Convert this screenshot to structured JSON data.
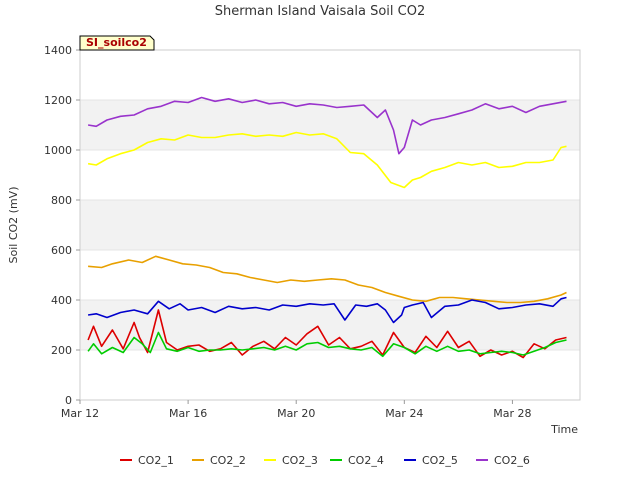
{
  "chart_data": {
    "type": "line",
    "title": "Sherman Island Vaisala Soil CO2",
    "site_label": "SI_soilco2",
    "xlabel": "Time",
    "ylabel": "Soil CO2 (mV)",
    "xlim_days": [
      0,
      18.5
    ],
    "x_ticks": [
      {
        "label": "Mar 12",
        "day": 0
      },
      {
        "label": "Mar 16",
        "day": 4
      },
      {
        "label": "Mar 20",
        "day": 8
      },
      {
        "label": "Mar 24",
        "day": 12
      },
      {
        "label": "Mar 28",
        "day": 16
      }
    ],
    "y_ticks": [
      0,
      200,
      400,
      600,
      800,
      1000,
      1200,
      1400
    ],
    "ylim": [
      0,
      1400
    ],
    "grid": true,
    "legend_position": "bottom",
    "series": [
      {
        "name": "CO2_1",
        "color": "#dd0000",
        "x": [
          0.3,
          0.5,
          0.8,
          1.2,
          1.6,
          2.0,
          2.2,
          2.5,
          2.9,
          3.2,
          3.6,
          4.0,
          4.4,
          4.8,
          5.2,
          5.6,
          6.0,
          6.4,
          6.8,
          7.2,
          7.6,
          8.0,
          8.4,
          8.8,
          9.2,
          9.6,
          10.0,
          10.4,
          10.8,
          11.2,
          11.6,
          12.0,
          12.4,
          12.8,
          13.2,
          13.6,
          14.0,
          14.4,
          14.8,
          15.2,
          15.6,
          16.0,
          16.4,
          16.8,
          17.2,
          17.6,
          18.0
        ],
        "y": [
          240,
          295,
          215,
          280,
          205,
          310,
          250,
          190,
          360,
          230,
          200,
          215,
          220,
          195,
          205,
          230,
          180,
          215,
          235,
          205,
          250,
          220,
          265,
          295,
          220,
          250,
          205,
          215,
          235,
          180,
          270,
          210,
          190,
          255,
          210,
          275,
          210,
          235,
          175,
          200,
          180,
          195,
          170,
          225,
          205,
          240,
          250
        ]
      },
      {
        "name": "CO2_2",
        "color": "#e8a000",
        "x": [
          0.3,
          0.8,
          1.2,
          1.8,
          2.3,
          2.8,
          3.3,
          3.8,
          4.3,
          4.8,
          5.3,
          5.8,
          6.3,
          6.8,
          7.3,
          7.8,
          8.3,
          8.8,
          9.3,
          9.8,
          10.3,
          10.8,
          11.3,
          11.8,
          12.3,
          12.8,
          13.3,
          13.8,
          14.3,
          14.8,
          15.3,
          15.8,
          16.3,
          16.8,
          17.3,
          17.8,
          18.0
        ],
        "y": [
          535,
          530,
          545,
          560,
          550,
          575,
          560,
          545,
          540,
          530,
          510,
          505,
          490,
          480,
          470,
          480,
          475,
          480,
          485,
          480,
          460,
          450,
          430,
          415,
          400,
          395,
          410,
          410,
          405,
          400,
          395,
          390,
          390,
          395,
          405,
          420,
          430
        ]
      },
      {
        "name": "CO2_3",
        "color": "#ffff00",
        "x": [
          0.3,
          0.6,
          1.0,
          1.5,
          2.0,
          2.5,
          3.0,
          3.5,
          4.0,
          4.5,
          5.0,
          5.5,
          6.0,
          6.5,
          7.0,
          7.5,
          8.0,
          8.5,
          9.0,
          9.5,
          10.0,
          10.5,
          11.0,
          11.5,
          12.0,
          12.3,
          12.6,
          13.0,
          13.5,
          14.0,
          14.5,
          15.0,
          15.5,
          16.0,
          16.5,
          17.0,
          17.5,
          17.8,
          18.0
        ],
        "y": [
          945,
          940,
          965,
          985,
          1000,
          1030,
          1045,
          1040,
          1060,
          1050,
          1050,
          1060,
          1065,
          1055,
          1060,
          1055,
          1070,
          1060,
          1065,
          1045,
          990,
          985,
          940,
          870,
          850,
          880,
          890,
          915,
          930,
          950,
          940,
          950,
          930,
          935,
          950,
          950,
          960,
          1010,
          1015
        ]
      },
      {
        "name": "CO2_4",
        "color": "#00cc00",
        "x": [
          0.3,
          0.5,
          0.8,
          1.2,
          1.6,
          2.0,
          2.3,
          2.6,
          2.9,
          3.2,
          3.6,
          4.0,
          4.4,
          4.8,
          5.2,
          5.6,
          6.0,
          6.4,
          6.8,
          7.2,
          7.6,
          8.0,
          8.4,
          8.8,
          9.2,
          9.6,
          10.0,
          10.4,
          10.8,
          11.2,
          11.6,
          12.0,
          12.4,
          12.8,
          13.2,
          13.6,
          14.0,
          14.4,
          14.8,
          15.2,
          15.6,
          16.0,
          16.4,
          16.8,
          17.2,
          17.6,
          18.0
        ],
        "y": [
          195,
          225,
          185,
          210,
          190,
          250,
          225,
          190,
          270,
          205,
          195,
          210,
          195,
          200,
          200,
          205,
          200,
          205,
          210,
          200,
          215,
          200,
          225,
          230,
          210,
          215,
          205,
          200,
          210,
          175,
          225,
          210,
          185,
          215,
          195,
          215,
          195,
          200,
          185,
          190,
          195,
          190,
          180,
          195,
          210,
          230,
          240
        ]
      },
      {
        "name": "CO2_5",
        "color": "#0000cc",
        "x": [
          0.3,
          0.6,
          1.0,
          1.5,
          2.0,
          2.5,
          2.9,
          3.3,
          3.7,
          4.0,
          4.5,
          5.0,
          5.5,
          6.0,
          6.5,
          7.0,
          7.5,
          8.0,
          8.5,
          9.0,
          9.4,
          9.8,
          10.2,
          10.6,
          11.0,
          11.3,
          11.6,
          11.9,
          12.0,
          12.3,
          12.7,
          13.0,
          13.5,
          14.0,
          14.5,
          15.0,
          15.5,
          16.0,
          16.5,
          17.0,
          17.5,
          17.8,
          18.0
        ],
        "y": [
          340,
          345,
          330,
          350,
          360,
          345,
          395,
          365,
          385,
          360,
          370,
          350,
          375,
          365,
          370,
          360,
          380,
          375,
          385,
          380,
          385,
          320,
          380,
          375,
          385,
          360,
          310,
          340,
          370,
          380,
          390,
          330,
          375,
          380,
          400,
          390,
          365,
          370,
          380,
          385,
          375,
          405,
          410
        ]
      },
      {
        "name": "CO2_6",
        "color": "#9933cc",
        "x": [
          0.3,
          0.6,
          1.0,
          1.5,
          2.0,
          2.5,
          3.0,
          3.5,
          4.0,
          4.5,
          5.0,
          5.5,
          6.0,
          6.5,
          7.0,
          7.5,
          8.0,
          8.5,
          9.0,
          9.5,
          10.0,
          10.5,
          11.0,
          11.3,
          11.6,
          11.8,
          12.0,
          12.3,
          12.6,
          13.0,
          13.5,
          14.0,
          14.5,
          15.0,
          15.5,
          16.0,
          16.5,
          17.0,
          17.5,
          18.0
        ],
        "y": [
          1100,
          1095,
          1120,
          1135,
          1140,
          1165,
          1175,
          1195,
          1190,
          1210,
          1195,
          1205,
          1190,
          1200,
          1185,
          1190,
          1175,
          1185,
          1180,
          1170,
          1175,
          1180,
          1130,
          1160,
          1080,
          985,
          1010,
          1120,
          1100,
          1120,
          1130,
          1145,
          1160,
          1185,
          1165,
          1175,
          1150,
          1175,
          1185,
          1195
        ]
      }
    ]
  }
}
